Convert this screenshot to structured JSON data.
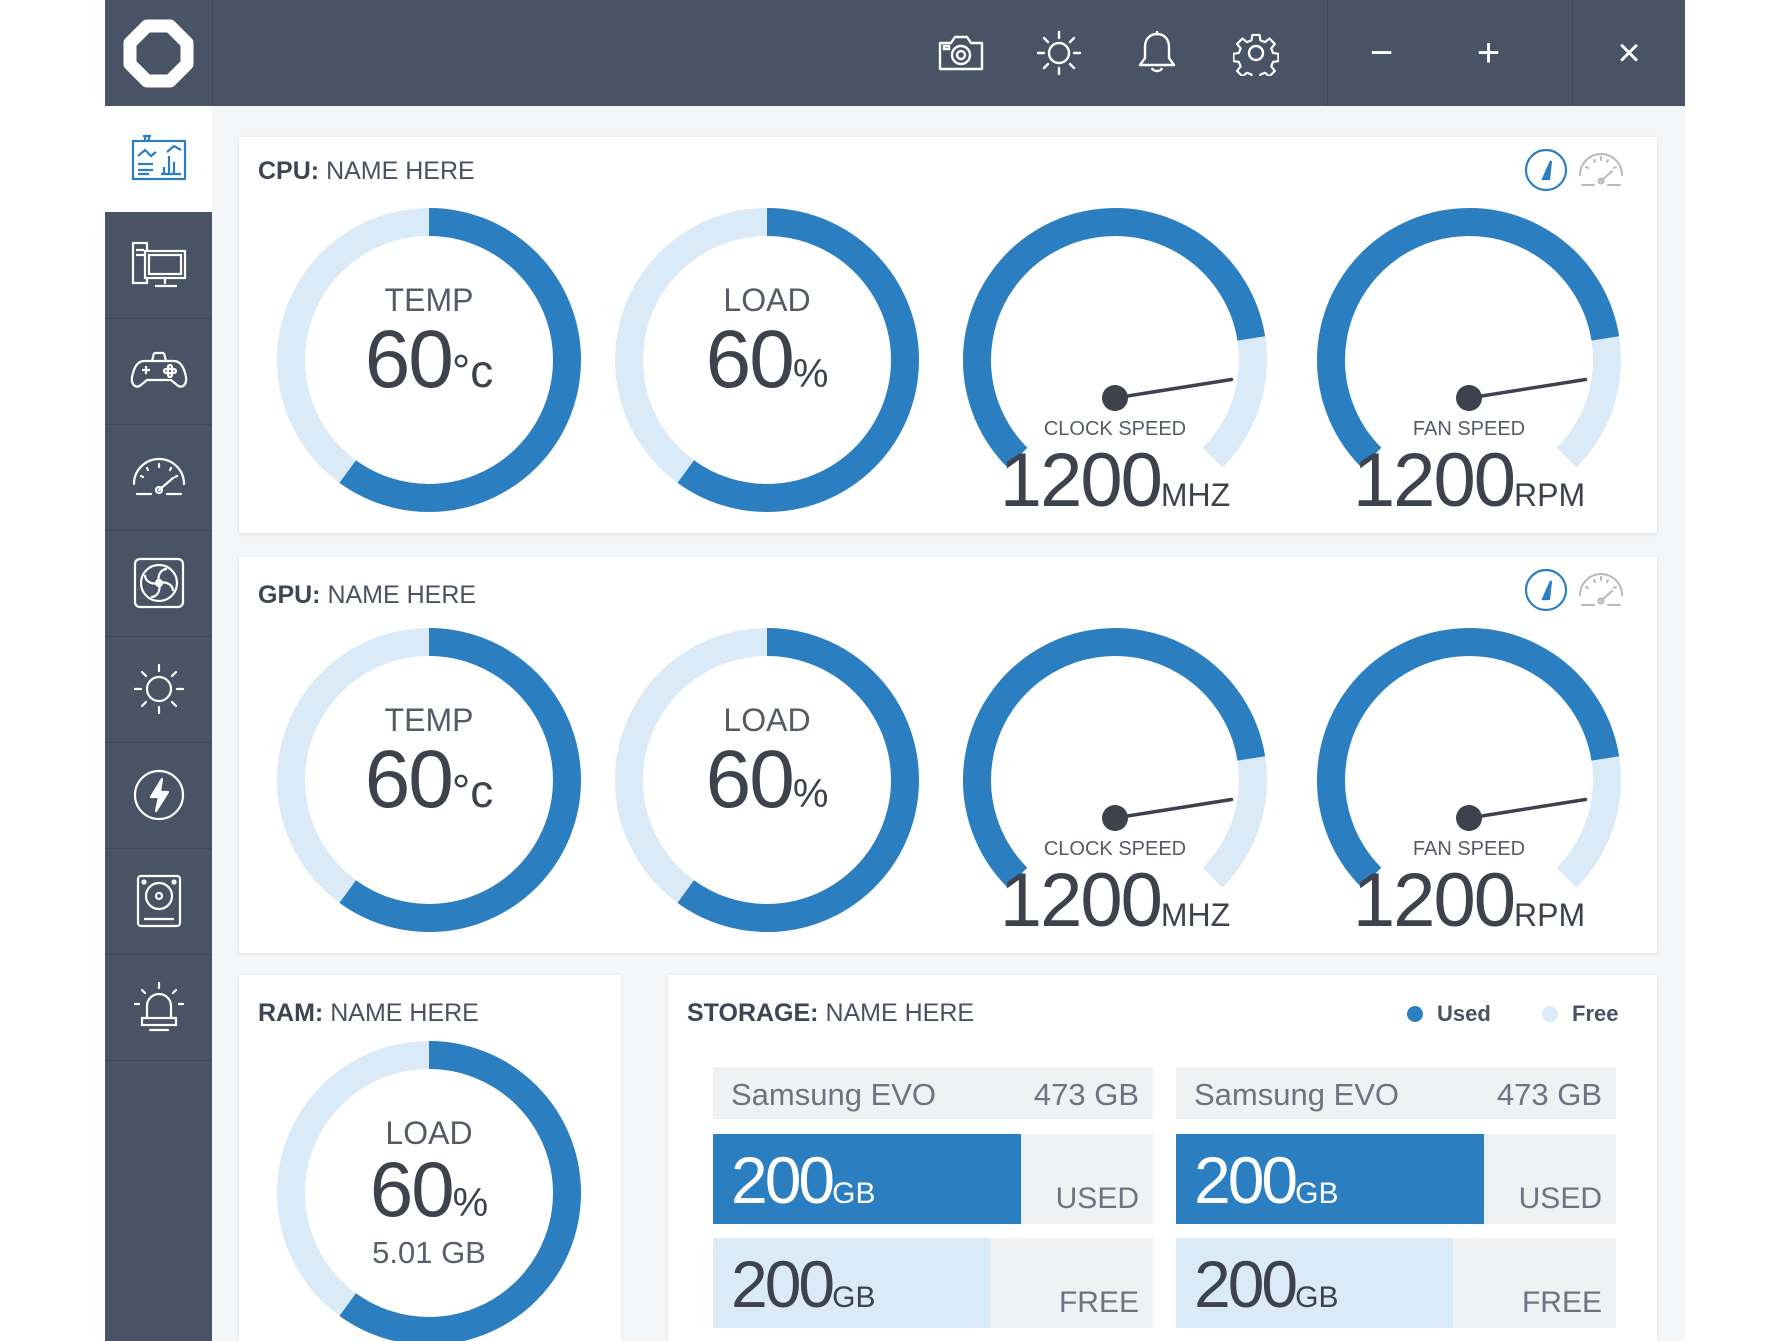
{
  "theme": {
    "accent": "#2b7fc1",
    "accent_light": "#dbeaf7",
    "chrome": "#485466"
  },
  "titlebar": {
    "logo_icon": "app-logo-icon",
    "actions": [
      "camera-icon",
      "brightness-icon",
      "bell-icon",
      "gear-icon"
    ],
    "window_controls": {
      "minimize": "−",
      "maximize": "+",
      "close": "×"
    }
  },
  "sidebar": {
    "items": [
      {
        "icon": "dashboard-icon",
        "active": true
      },
      {
        "icon": "monitor-icon"
      },
      {
        "icon": "gamepad-icon"
      },
      {
        "icon": "speedometer-icon"
      },
      {
        "icon": "fan-icon"
      },
      {
        "icon": "sun-icon"
      },
      {
        "icon": "lightning-icon"
      },
      {
        "icon": "drive-icon"
      },
      {
        "icon": "alarm-light-icon"
      }
    ]
  },
  "cpu": {
    "title_label": "CPU:",
    "title_name": "NAME HERE",
    "view_icons": [
      "gauge-view-icon",
      "dial-view-icon"
    ],
    "temp": {
      "label": "TEMP",
      "value": "60",
      "unit": "°c",
      "percent": 60
    },
    "load": {
      "label": "LOAD",
      "value": "60",
      "unit": "%",
      "percent": 60
    },
    "clock": {
      "label": "CLOCK SPEED",
      "value": "1200",
      "unit": "MHZ",
      "level": 0.8
    },
    "fan": {
      "label": "FAN SPEED",
      "value": "1200",
      "unit": "RPM",
      "level": 0.8
    }
  },
  "gpu": {
    "title_label": "GPU:",
    "title_name": "NAME HERE",
    "view_icons": [
      "gauge-view-icon",
      "dial-view-icon"
    ],
    "temp": {
      "label": "TEMP",
      "value": "60",
      "unit": "°c",
      "percent": 60
    },
    "load": {
      "label": "LOAD",
      "value": "60",
      "unit": "%",
      "percent": 60
    },
    "clock": {
      "label": "CLOCK SPEED",
      "value": "1200",
      "unit": "MHZ",
      "level": 0.8
    },
    "fan": {
      "label": "FAN SPEED",
      "value": "1200",
      "unit": "RPM",
      "level": 0.8
    }
  },
  "ram": {
    "title_label": "RAM:",
    "title_name": "NAME HERE",
    "load": {
      "label": "LOAD",
      "value": "60",
      "unit": "%",
      "percent": 60,
      "sub": "5.01 GB"
    }
  },
  "storage": {
    "title_label": "STORAGE:",
    "title_name": "NAME HERE",
    "legend": {
      "used": "Used",
      "free": "Free"
    },
    "drives": [
      {
        "name": "Samsung EVO",
        "capacity": "473 GB",
        "used_value": "200",
        "used_unit": "GB",
        "used_tag": "USED",
        "used_fraction": 0.7,
        "free_value": "200",
        "free_unit": "GB",
        "free_tag": "FREE",
        "free_fraction": 0.63
      },
      {
        "name": "Samsung EVO",
        "capacity": "473 GB",
        "used_value": "200",
        "used_unit": "GB",
        "used_tag": "USED",
        "used_fraction": 0.7,
        "free_value": "200",
        "free_unit": "GB",
        "free_tag": "FREE",
        "free_fraction": 0.63
      }
    ]
  }
}
